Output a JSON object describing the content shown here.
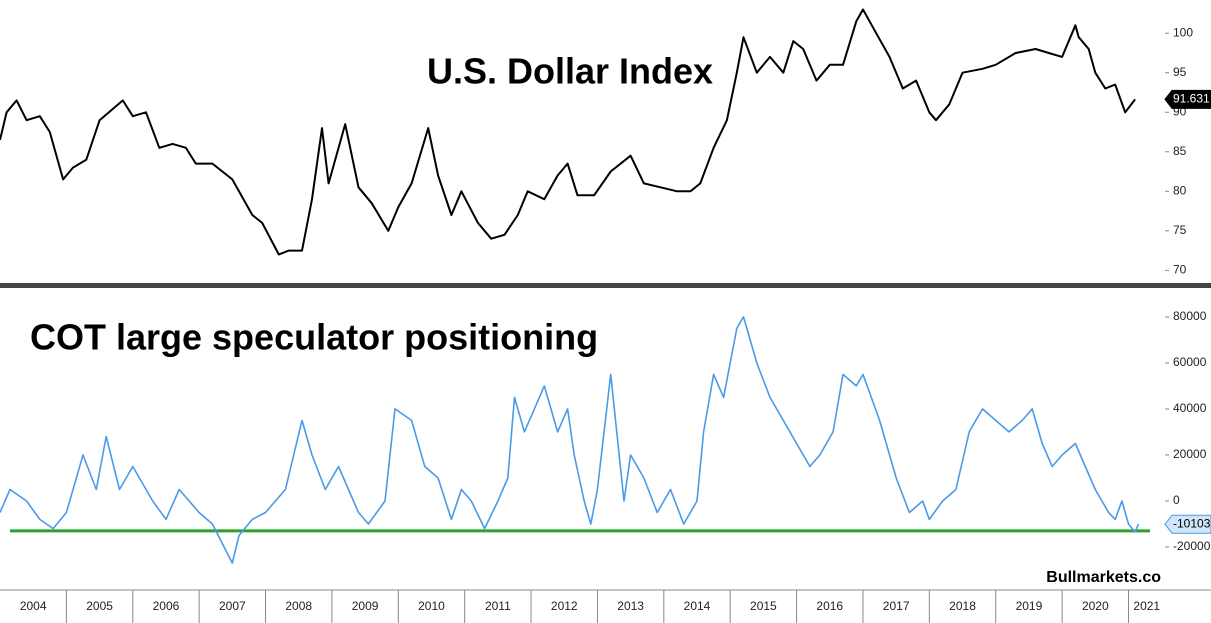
{
  "chart_data": [
    {
      "type": "line",
      "title": "U.S. Dollar Index",
      "color": "#000000",
      "xlim": [
        2004,
        2021.55
      ],
      "ylim": [
        68.4,
        104.2
      ],
      "yticks": [
        70,
        75,
        80,
        85,
        90,
        95,
        100
      ],
      "last_value": 91.631,
      "x": [
        2004.0,
        2004.1,
        2004.25,
        2004.4,
        2004.6,
        2004.75,
        2004.95,
        2005.1,
        2005.3,
        2005.5,
        2005.85,
        2006.0,
        2006.2,
        2006.4,
        2006.6,
        2006.8,
        2006.95,
        2007.2,
        2007.5,
        2007.8,
        2007.95,
        2008.2,
        2008.35,
        2008.55,
        2008.7,
        2008.85,
        2008.95,
        2009.2,
        2009.4,
        2009.6,
        2009.85,
        2010.0,
        2010.2,
        2010.45,
        2010.6,
        2010.8,
        2010.95,
        2011.2,
        2011.4,
        2011.6,
        2011.8,
        2011.95,
        2012.2,
        2012.4,
        2012.55,
        2012.7,
        2012.95,
        2013.2,
        2013.5,
        2013.7,
        2013.95,
        2014.2,
        2014.4,
        2014.55,
        2014.75,
        2014.95,
        2015.1,
        2015.2,
        2015.4,
        2015.6,
        2015.8,
        2015.95,
        2016.1,
        2016.3,
        2016.5,
        2016.7,
        2016.9,
        2017.0,
        2017.2,
        2017.4,
        2017.6,
        2017.8,
        2018.0,
        2018.1,
        2018.3,
        2018.5,
        2018.8,
        2019.0,
        2019.3,
        2019.6,
        2019.8,
        2020.0,
        2020.2,
        2020.25,
        2020.4,
        2020.5,
        2020.65,
        2020.8,
        2020.95,
        2021.1
      ],
      "values": [
        86.5,
        90,
        91.5,
        89,
        89.5,
        87.5,
        81.5,
        83,
        84,
        89,
        91.5,
        89.5,
        90,
        85.5,
        86,
        85.5,
        83.5,
        83.5,
        81.5,
        77,
        76,
        72,
        72.5,
        72.5,
        79,
        88,
        81,
        88.5,
        80.5,
        78.5,
        75,
        78,
        81,
        88,
        82,
        77,
        80,
        76,
        74,
        74.5,
        77,
        80,
        79,
        82,
        83.5,
        79.5,
        79.5,
        82.5,
        84.5,
        81,
        80.5,
        80,
        80,
        81,
        85.5,
        89,
        95,
        99.5,
        95,
        97,
        95,
        99,
        98,
        94,
        96,
        96,
        101.5,
        103,
        100,
        97,
        93,
        94,
        90,
        89,
        91,
        95,
        95.5,
        96,
        97.5,
        98,
        97.5,
        97,
        101,
        99.5,
        98,
        95,
        93,
        93.5,
        90,
        91.631
      ]
    },
    {
      "type": "line",
      "title": "COT large speculator positioning",
      "color": "#4a9ae8",
      "xlim": [
        2004,
        2021.55
      ],
      "ylim": [
        -38700,
        91700
      ],
      "yticks": [
        -20000,
        0,
        20000,
        40000,
        60000,
        80000
      ],
      "xticks": [
        2004,
        2005,
        2006,
        2007,
        2008,
        2009,
        2010,
        2011,
        2012,
        2013,
        2014,
        2015,
        2016,
        2017,
        2018,
        2019,
        2020,
        2021
      ],
      "last_value": -10103,
      "hline": {
        "value": -13000,
        "color": "#2ca02c"
      },
      "x": [
        2004.0,
        2004.15,
        2004.4,
        2004.6,
        2004.8,
        2005.0,
        2005.25,
        2005.45,
        2005.6,
        2005.8,
        2006.0,
        2006.3,
        2006.5,
        2006.7,
        2007.0,
        2007.2,
        2007.5,
        2007.6,
        2007.8,
        2008.0,
        2008.3,
        2008.55,
        2008.7,
        2008.9,
        2009.1,
        2009.4,
        2009.55,
        2009.8,
        2009.95,
        2010.2,
        2010.4,
        2010.6,
        2010.8,
        2010.95,
        2011.1,
        2011.3,
        2011.5,
        2011.65,
        2011.75,
        2011.9,
        2012.05,
        2012.2,
        2012.4,
        2012.55,
        2012.65,
        2012.8,
        2012.9,
        2013.0,
        2013.2,
        2013.4,
        2013.5,
        2013.7,
        2013.9,
        2014.1,
        2014.3,
        2014.5,
        2014.6,
        2014.75,
        2014.9,
        2015.1,
        2015.2,
        2015.4,
        2015.6,
        2015.8,
        2016.0,
        2016.2,
        2016.35,
        2016.55,
        2016.7,
        2016.9,
        2017.0,
        2017.25,
        2017.5,
        2017.7,
        2017.9,
        2018.0,
        2018.2,
        2018.4,
        2018.6,
        2018.8,
        2019.0,
        2019.2,
        2019.4,
        2019.55,
        2019.7,
        2019.85,
        2020.0,
        2020.2,
        2020.35,
        2020.5,
        2020.7,
        2020.8,
        2020.9,
        2021.0,
        2021.1,
        2021.15
      ],
      "values": [
        -5000,
        5000,
        0,
        -8000,
        -12000,
        -5000,
        20000,
        5000,
        28000,
        5000,
        15000,
        0,
        -8000,
        5000,
        -5000,
        -10000,
        -27000,
        -15000,
        -8000,
        -5000,
        5000,
        35000,
        20000,
        5000,
        15000,
        -5000,
        -10000,
        0,
        40000,
        35000,
        15000,
        10000,
        -8000,
        5000,
        0,
        -12000,
        0,
        10000,
        45000,
        30000,
        40000,
        50000,
        30000,
        40000,
        20000,
        0,
        -10000,
        5000,
        55000,
        0,
        20000,
        10000,
        -5000,
        5000,
        -10000,
        0,
        30000,
        55000,
        45000,
        75000,
        80000,
        60000,
        45000,
        35000,
        25000,
        15000,
        20000,
        30000,
        55000,
        50000,
        55000,
        35000,
        10000,
        -5000,
        0,
        -8000,
        0,
        5000,
        30000,
        40000,
        35000,
        30000,
        35000,
        40000,
        25000,
        15000,
        20000,
        25000,
        15000,
        5000,
        -5000,
        -8000,
        0,
        -10000,
        -13500,
        -10103
      ]
    }
  ],
  "source": "Bullmarkets.co"
}
